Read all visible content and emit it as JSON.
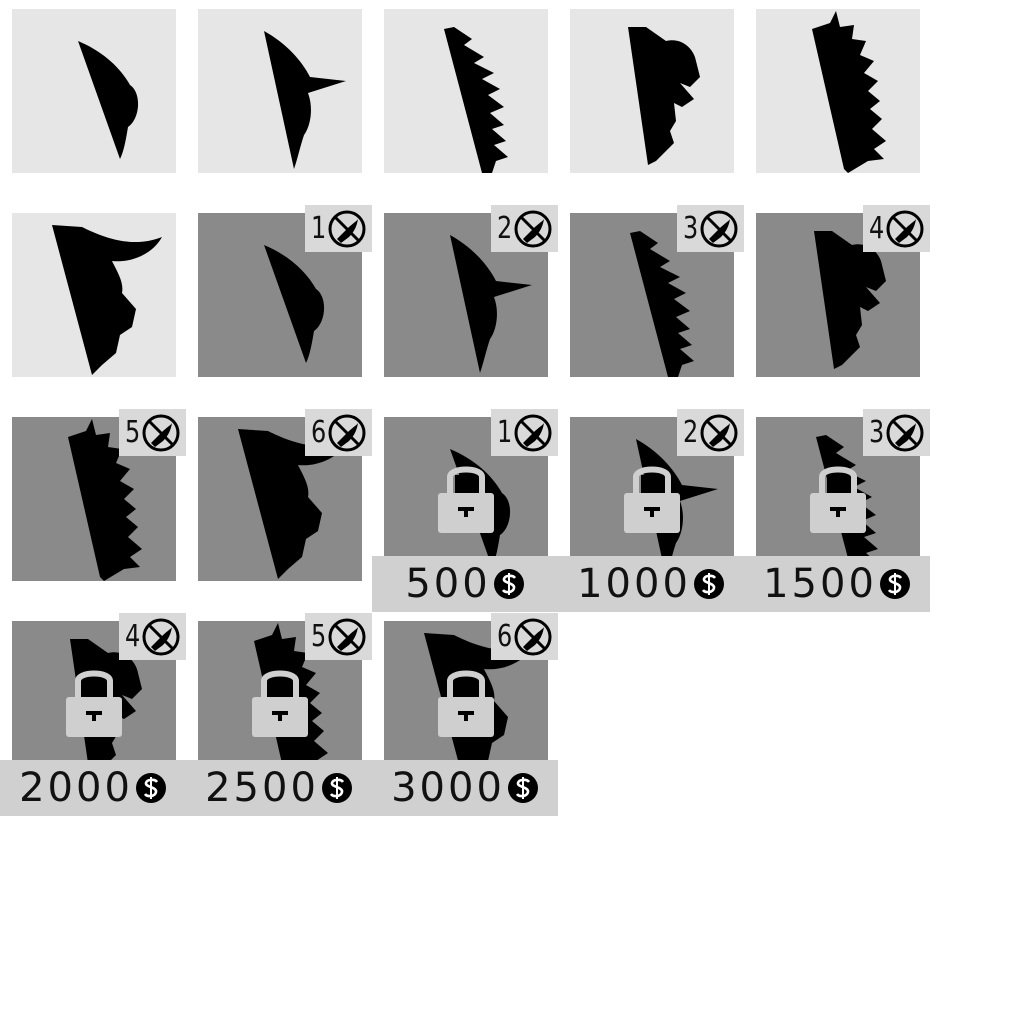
{
  "colors": {
    "tile_light": "#e6e6e6",
    "tile_dark": "#8a8a8a",
    "silhouette": "#000000",
    "badge_bg": "#d9d9d9",
    "price_bg": "#d0d0d0",
    "lock": "#cfcfcf"
  },
  "icons": {
    "badge": "no-knife-icon",
    "lock": "padlock-icon",
    "currency": "coin-dollar-icon"
  },
  "owned_shields": [
    {
      "style": "plain"
    },
    {
      "style": "spiked-tip"
    },
    {
      "style": "serrated"
    },
    {
      "style": "beast-head"
    },
    {
      "style": "flame"
    },
    {
      "style": "horned-beast"
    }
  ],
  "equip_levels": [
    {
      "level": "1"
    },
    {
      "level": "2"
    },
    {
      "level": "3"
    },
    {
      "level": "4"
    },
    {
      "level": "5"
    },
    {
      "level": "6"
    }
  ],
  "locked_shields": [
    {
      "level": "1",
      "price": "500"
    },
    {
      "level": "2",
      "price": "1000"
    },
    {
      "level": "3",
      "price": "1500"
    },
    {
      "level": "4",
      "price": "2000"
    },
    {
      "level": "5",
      "price": "2500"
    },
    {
      "level": "6",
      "price": "3000"
    }
  ]
}
